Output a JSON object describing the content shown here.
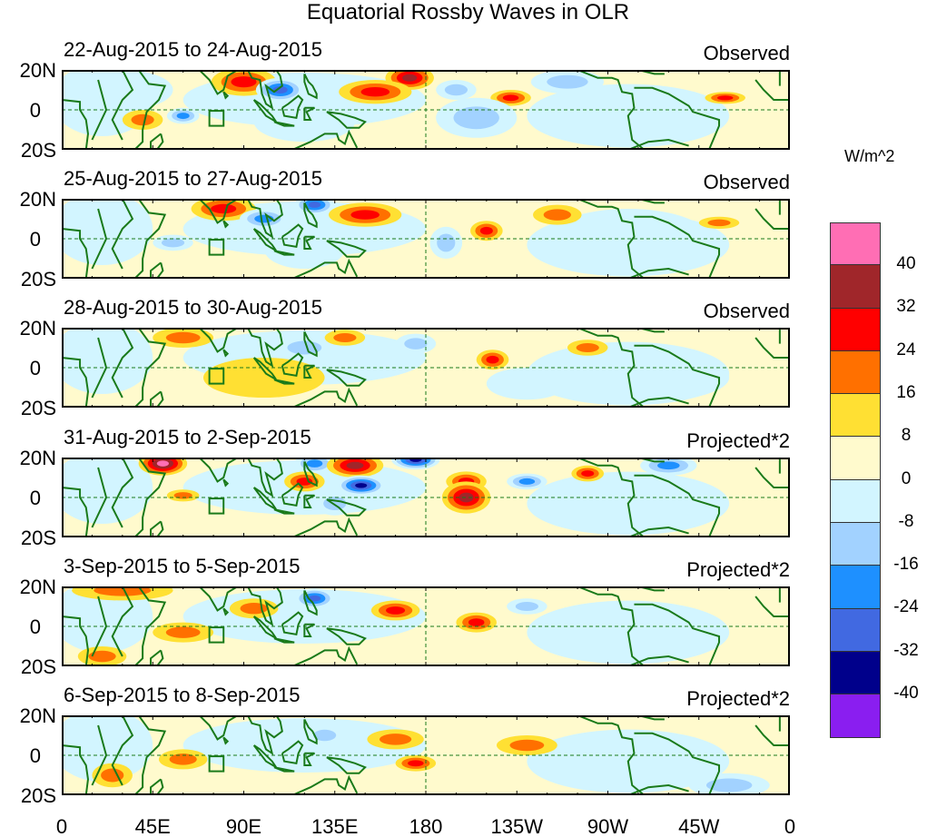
{
  "title": "Equatorial Rossby Waves in OLR",
  "panels": [
    {
      "period": "22-Aug-2015 to 24-Aug-2015",
      "kind": "Observed"
    },
    {
      "period": "25-Aug-2015 to 27-Aug-2015",
      "kind": "Observed"
    },
    {
      "period": "28-Aug-2015 to 30-Aug-2015",
      "kind": "Observed"
    },
    {
      "period": "31-Aug-2015 to 2-Sep-2015",
      "kind": "Projected*2"
    },
    {
      "period": "3-Sep-2015 to 5-Sep-2015",
      "kind": "Projected*2"
    },
    {
      "period": "6-Sep-2015 to 8-Sep-2015",
      "kind": "Projected*2"
    }
  ],
  "y_ticks": [
    "20N",
    "0",
    "20S"
  ],
  "x_ticks": [
    "0",
    "45E",
    "90E",
    "135E",
    "180",
    "135W",
    "90W",
    "45W",
    "0"
  ],
  "colorbar": {
    "units": "W/m^2",
    "labels": [
      "40",
      "32",
      "24",
      "16",
      "8",
      "0",
      "-8",
      "-16",
      "-24",
      "-32",
      "-40"
    ],
    "colors": [
      "#ff6eb4",
      "#a0262a",
      "#ff0000",
      "#ff7000",
      "#ffe033",
      "#fffacd",
      "#d2f5ff",
      "#a2d2ff",
      "#1e90ff",
      "#4169e1",
      "#00008b",
      "#8a1ef0"
    ]
  },
  "chart_data": {
    "type": "heatmap",
    "variable": "OLR anomaly (W/m^2)",
    "lon_range": [
      0,
      360
    ],
    "lat_range": [
      -20,
      20
    ],
    "anomaly_centers": [
      [
        {
          "lon": 90,
          "lat": 14,
          "dlon": 16,
          "dlat": 7,
          "v": 22
        },
        {
          "lon": 108,
          "lat": 10,
          "dlon": 12,
          "dlat": 6,
          "v": -26
        },
        {
          "lon": 172,
          "lat": 16,
          "dlon": 12,
          "dlat": 6,
          "v": 28
        },
        {
          "lon": 155,
          "lat": 9,
          "dlon": 18,
          "dlat": 6,
          "v": 18
        },
        {
          "lon": 60,
          "lat": -3,
          "dlon": 8,
          "dlat": 4,
          "v": -18
        },
        {
          "lon": 222,
          "lat": 6,
          "dlon": 10,
          "dlat": 4,
          "v": 18
        },
        {
          "lon": 328,
          "lat": 6,
          "dlon": 10,
          "dlat": 3,
          "v": 18
        },
        {
          "lon": 205,
          "lat": -4,
          "dlon": 20,
          "dlat": 10,
          "v": -12
        },
        {
          "lon": 120,
          "lat": -6,
          "dlon": 25,
          "dlat": 10,
          "v": -6
        },
        {
          "lon": 280,
          "lat": -2,
          "dlon": 40,
          "dlat": 14,
          "v": -6
        },
        {
          "lon": 30,
          "lat": 10,
          "dlon": 25,
          "dlat": 10,
          "v": -6
        },
        {
          "lon": 250,
          "lat": 14,
          "dlon": 18,
          "dlat": 6,
          "v": -10
        },
        {
          "lon": 40,
          "lat": -5,
          "dlon": 10,
          "dlat": 5,
          "v": 10
        },
        {
          "lon": 195,
          "lat": 10,
          "dlon": 10,
          "dlat": 5,
          "v": -12
        }
      ],
      [
        {
          "lon": 80,
          "lat": 15,
          "dlon": 16,
          "dlat": 6,
          "v": 20
        },
        {
          "lon": 100,
          "lat": 10,
          "dlon": 12,
          "dlat": 5,
          "v": -22
        },
        {
          "lon": 125,
          "lat": 17,
          "dlon": 10,
          "dlat": 5,
          "v": -26
        },
        {
          "lon": 150,
          "lat": 12,
          "dlon": 18,
          "dlat": 6,
          "v": 18
        },
        {
          "lon": 210,
          "lat": 4,
          "dlon": 8,
          "dlat": 5,
          "v": 18
        },
        {
          "lon": 190,
          "lat": -2,
          "dlon": 8,
          "dlat": 8,
          "v": -16
        },
        {
          "lon": 325,
          "lat": 8,
          "dlon": 10,
          "dlat": 3,
          "v": 16
        },
        {
          "lon": 55,
          "lat": -2,
          "dlon": 10,
          "dlat": 4,
          "v": -14
        },
        {
          "lon": 120,
          "lat": -5,
          "dlon": 20,
          "dlat": 10,
          "v": -6
        },
        {
          "lon": 280,
          "lat": 0,
          "dlon": 40,
          "dlat": 15,
          "v": -6
        },
        {
          "lon": 245,
          "lat": 12,
          "dlon": 12,
          "dlat": 5,
          "v": 10
        },
        {
          "lon": 20,
          "lat": 8,
          "dlon": 20,
          "dlat": 10,
          "v": -6
        }
      ],
      [
        {
          "lon": 60,
          "lat": 15,
          "dlon": 15,
          "dlat": 5,
          "v": 12
        },
        {
          "lon": 120,
          "lat": 10,
          "dlon": 15,
          "dlat": 6,
          "v": -14
        },
        {
          "lon": 140,
          "lat": 15,
          "dlon": 10,
          "dlat": 4,
          "v": 14
        },
        {
          "lon": 213,
          "lat": 4,
          "dlon": 8,
          "dlat": 5,
          "v": 20
        },
        {
          "lon": 175,
          "lat": 12,
          "dlon": 10,
          "dlat": 5,
          "v": -14
        },
        {
          "lon": 260,
          "lat": 10,
          "dlon": 10,
          "dlat": 4,
          "v": 12
        },
        {
          "lon": 100,
          "lat": -5,
          "dlon": 30,
          "dlat": 10,
          "v": 8
        },
        {
          "lon": 290,
          "lat": -5,
          "dlon": 40,
          "dlat": 12,
          "v": -6
        },
        {
          "lon": 20,
          "lat": 5,
          "dlon": 20,
          "dlat": 10,
          "v": -6
        },
        {
          "lon": 230,
          "lat": -8,
          "dlon": 20,
          "dlat": 8,
          "v": -6
        }
      ],
      [
        {
          "lon": 50,
          "lat": 17,
          "dlon": 12,
          "dlat": 6,
          "v": 34
        },
        {
          "lon": 125,
          "lat": 17,
          "dlon": 10,
          "dlat": 5,
          "v": -22
        },
        {
          "lon": 145,
          "lat": 16,
          "dlon": 14,
          "dlat": 6,
          "v": 30
        },
        {
          "lon": 148,
          "lat": 6,
          "dlon": 12,
          "dlat": 5,
          "v": -34
        },
        {
          "lon": 175,
          "lat": 19,
          "dlon": 12,
          "dlat": 5,
          "v": -36
        },
        {
          "lon": 200,
          "lat": 8,
          "dlon": 10,
          "dlat": 5,
          "v": 20
        },
        {
          "lon": 200,
          "lat": 0,
          "dlon": 12,
          "dlat": 8,
          "v": 30
        },
        {
          "lon": 120,
          "lat": 8,
          "dlon": 10,
          "dlat": 5,
          "v": 20
        },
        {
          "lon": 230,
          "lat": 8,
          "dlon": 10,
          "dlat": 4,
          "v": -20
        },
        {
          "lon": 260,
          "lat": 12,
          "dlon": 8,
          "dlat": 4,
          "v": 18
        },
        {
          "lon": 300,
          "lat": 16,
          "dlon": 14,
          "dlat": 5,
          "v": -18
        },
        {
          "lon": 60,
          "lat": 1,
          "dlon": 8,
          "dlat": 3,
          "v": 16
        },
        {
          "lon": 135,
          "lat": -3,
          "dlon": 10,
          "dlat": 6,
          "v": -14
        },
        {
          "lon": 270,
          "lat": -5,
          "dlon": 30,
          "dlat": 12,
          "v": -8
        }
      ],
      [
        {
          "lon": 30,
          "lat": 18,
          "dlon": 25,
          "dlat": 5,
          "v": 14
        },
        {
          "lon": 125,
          "lat": 14,
          "dlon": 10,
          "dlat": 5,
          "v": -26
        },
        {
          "lon": 165,
          "lat": 8,
          "dlon": 12,
          "dlat": 5,
          "v": 20
        },
        {
          "lon": 205,
          "lat": 2,
          "dlon": 10,
          "dlat": 5,
          "v": 20
        },
        {
          "lon": 95,
          "lat": 9,
          "dlon": 12,
          "dlat": 5,
          "v": 16
        },
        {
          "lon": 230,
          "lat": 10,
          "dlon": 10,
          "dlat": 4,
          "v": -10
        },
        {
          "lon": 280,
          "lat": -5,
          "dlon": 30,
          "dlat": 12,
          "v": -8
        },
        {
          "lon": 20,
          "lat": -15,
          "dlon": 12,
          "dlat": 5,
          "v": 12
        },
        {
          "lon": 60,
          "lat": -3,
          "dlon": 15,
          "dlat": 5,
          "v": 10
        }
      ],
      [
        {
          "lon": 165,
          "lat": 8,
          "dlon": 14,
          "dlat": 5,
          "v": 14
        },
        {
          "lon": 175,
          "lat": -4,
          "dlon": 10,
          "dlat": 4,
          "v": 22
        },
        {
          "lon": 130,
          "lat": 10,
          "dlon": 10,
          "dlat": 5,
          "v": -12
        },
        {
          "lon": 60,
          "lat": -2,
          "dlon": 12,
          "dlat": 5,
          "v": 12
        },
        {
          "lon": 330,
          "lat": -15,
          "dlon": 20,
          "dlat": 6,
          "v": -14
        },
        {
          "lon": 280,
          "lat": -3,
          "dlon": 35,
          "dlat": 12,
          "v": -6
        },
        {
          "lon": 230,
          "lat": 5,
          "dlon": 15,
          "dlat": 5,
          "v": 10
        },
        {
          "lon": 25,
          "lat": -10,
          "dlon": 10,
          "dlat": 6,
          "v": 12
        }
      ]
    ]
  }
}
